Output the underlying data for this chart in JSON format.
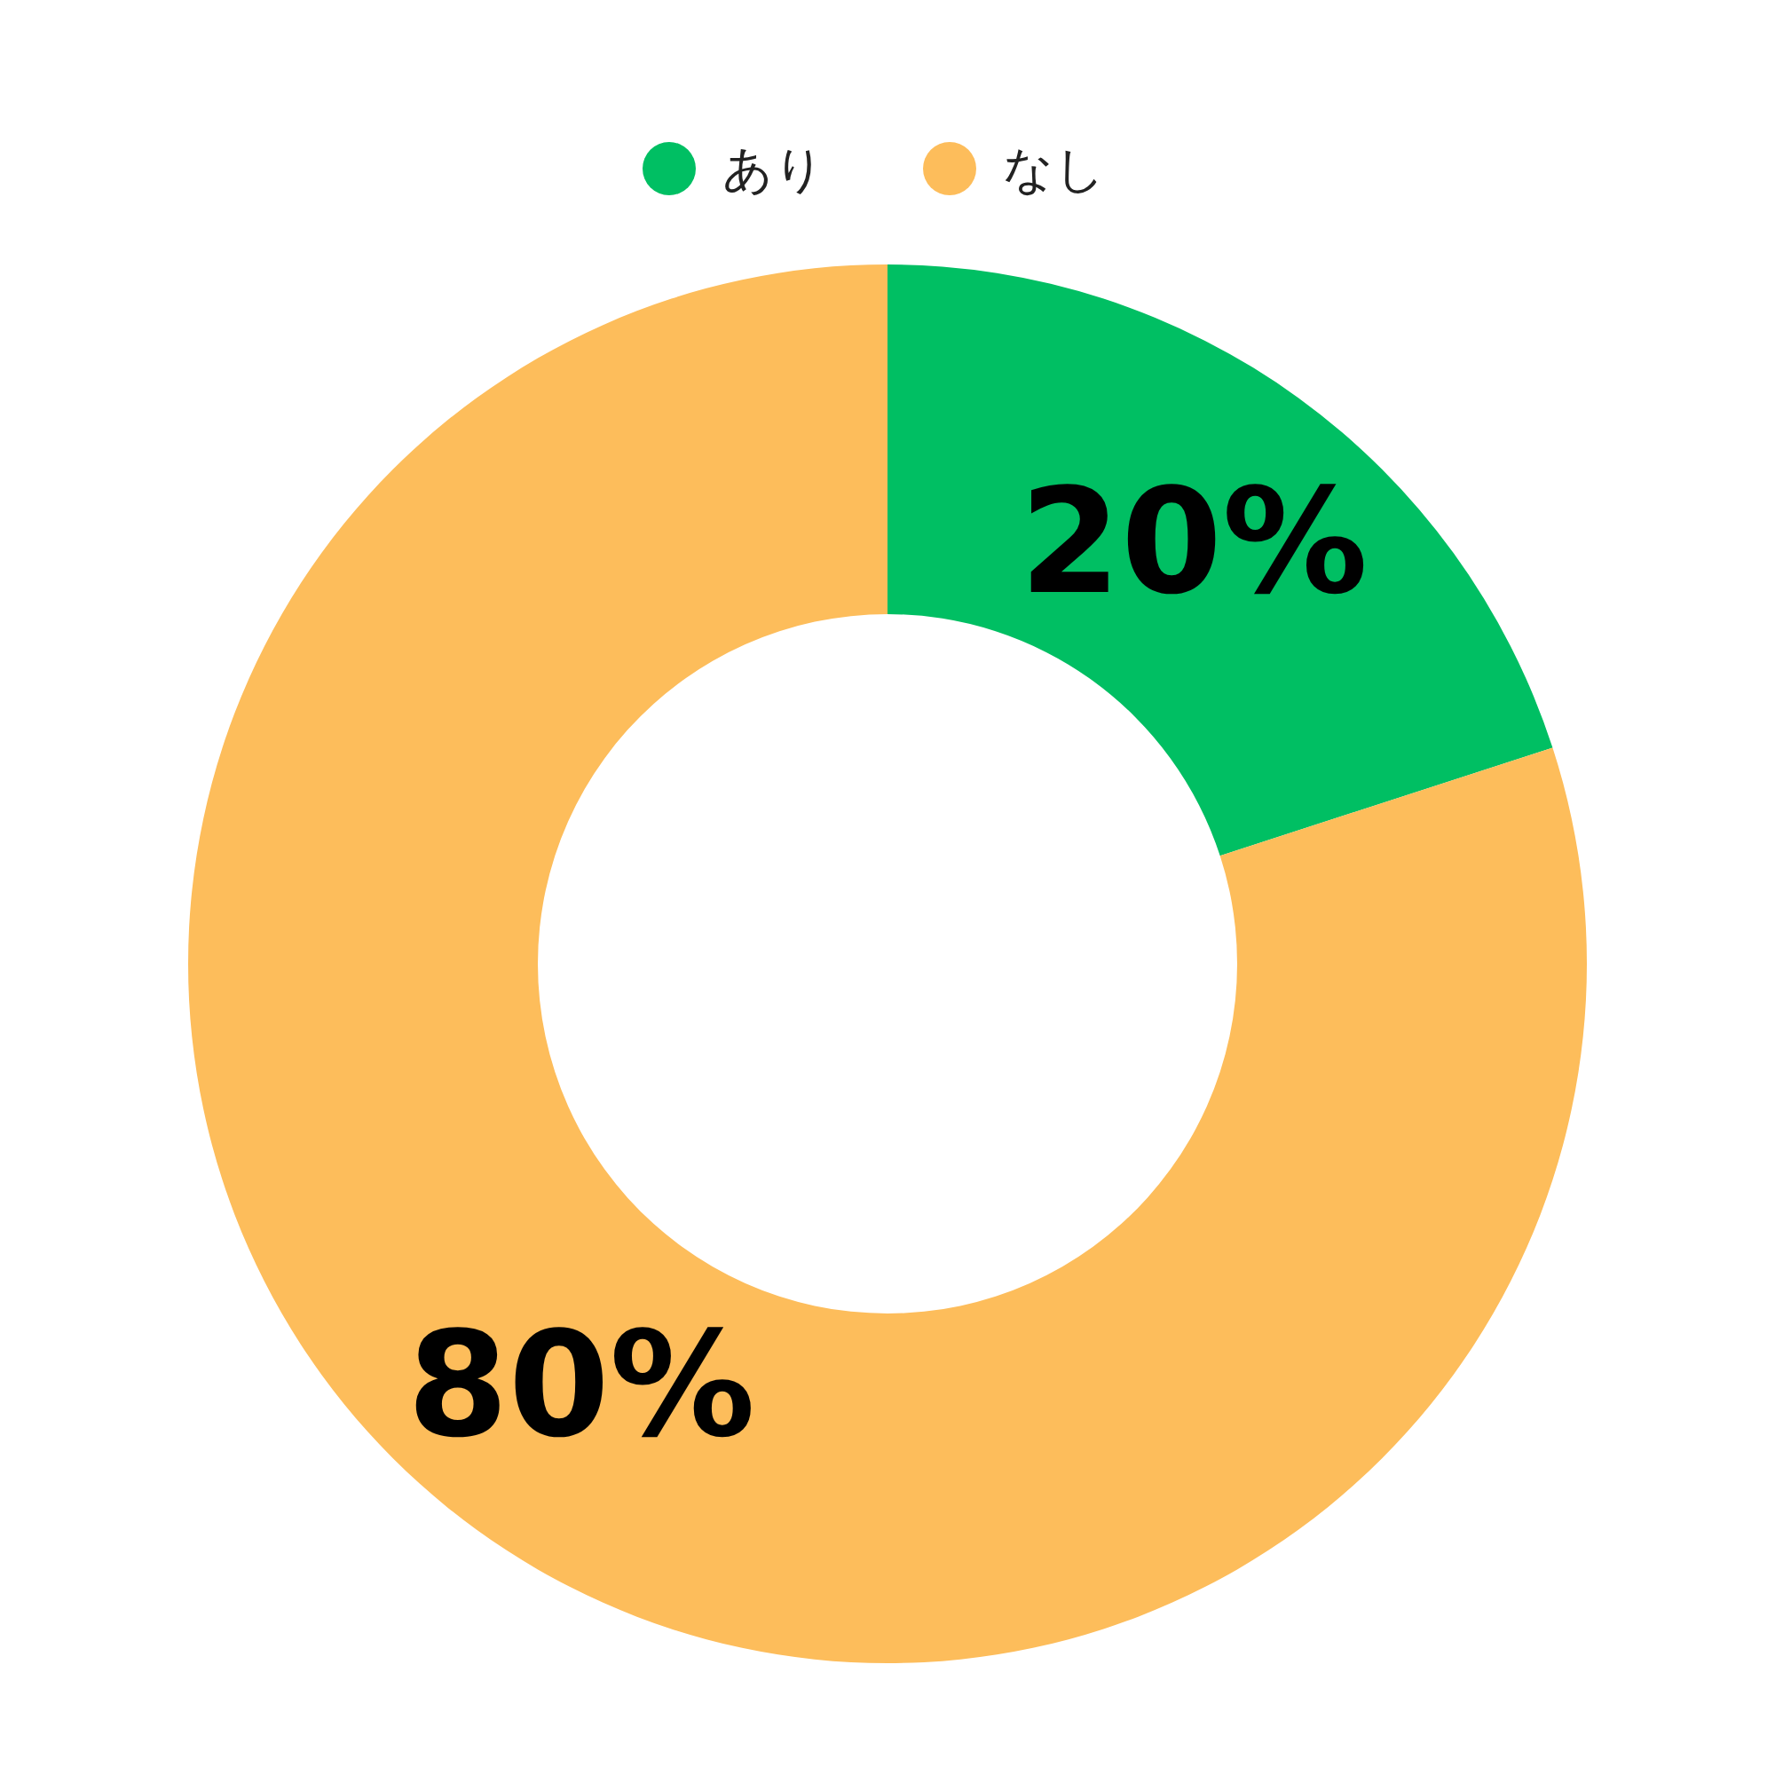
{
  "chart_data": {
    "type": "donut",
    "categories": [
      "あり",
      "なし"
    ],
    "values": [
      20,
      80
    ],
    "colors": [
      "#00bf63",
      "#fdbd5b"
    ],
    "value_labels": [
      "20%",
      "80%"
    ],
    "legend": "top"
  }
}
